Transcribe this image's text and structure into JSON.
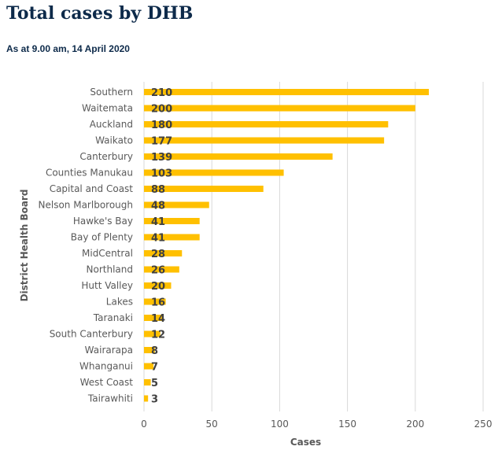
{
  "header": {
    "title": "Total cases by DHB",
    "subtitle": "As at 9.00 am, 14 April 2020"
  },
  "colors": {
    "bar": "#FFC000",
    "grid": "#D9D9D9",
    "title": "#0D2A4A"
  },
  "chart_data": {
    "type": "bar",
    "orientation": "horizontal",
    "title": "Total cases by DHB",
    "subtitle": "As at 9.00 am, 14 April 2020",
    "xlabel": "Cases",
    "ylabel": "District Health Board",
    "xlim": [
      0,
      250
    ],
    "xticks": [
      0,
      50,
      100,
      150,
      200,
      250
    ],
    "grid": true,
    "categories": [
      "Southern",
      "Waitemata",
      "Auckland",
      "Waikato",
      "Canterbury",
      "Counties Manukau",
      "Capital and Coast",
      "Nelson Marlborough",
      "Hawke's Bay",
      "Bay of Plenty",
      "MidCentral",
      "Northland",
      "Hutt Valley",
      "Lakes",
      "Taranaki",
      "South Canterbury",
      "Wairarapa",
      "Whanganui",
      "West Coast",
      "Tairawhiti"
    ],
    "values": [
      210,
      200,
      180,
      177,
      139,
      103,
      88,
      48,
      41,
      41,
      28,
      26,
      20,
      16,
      14,
      12,
      8,
      7,
      5,
      3
    ]
  }
}
